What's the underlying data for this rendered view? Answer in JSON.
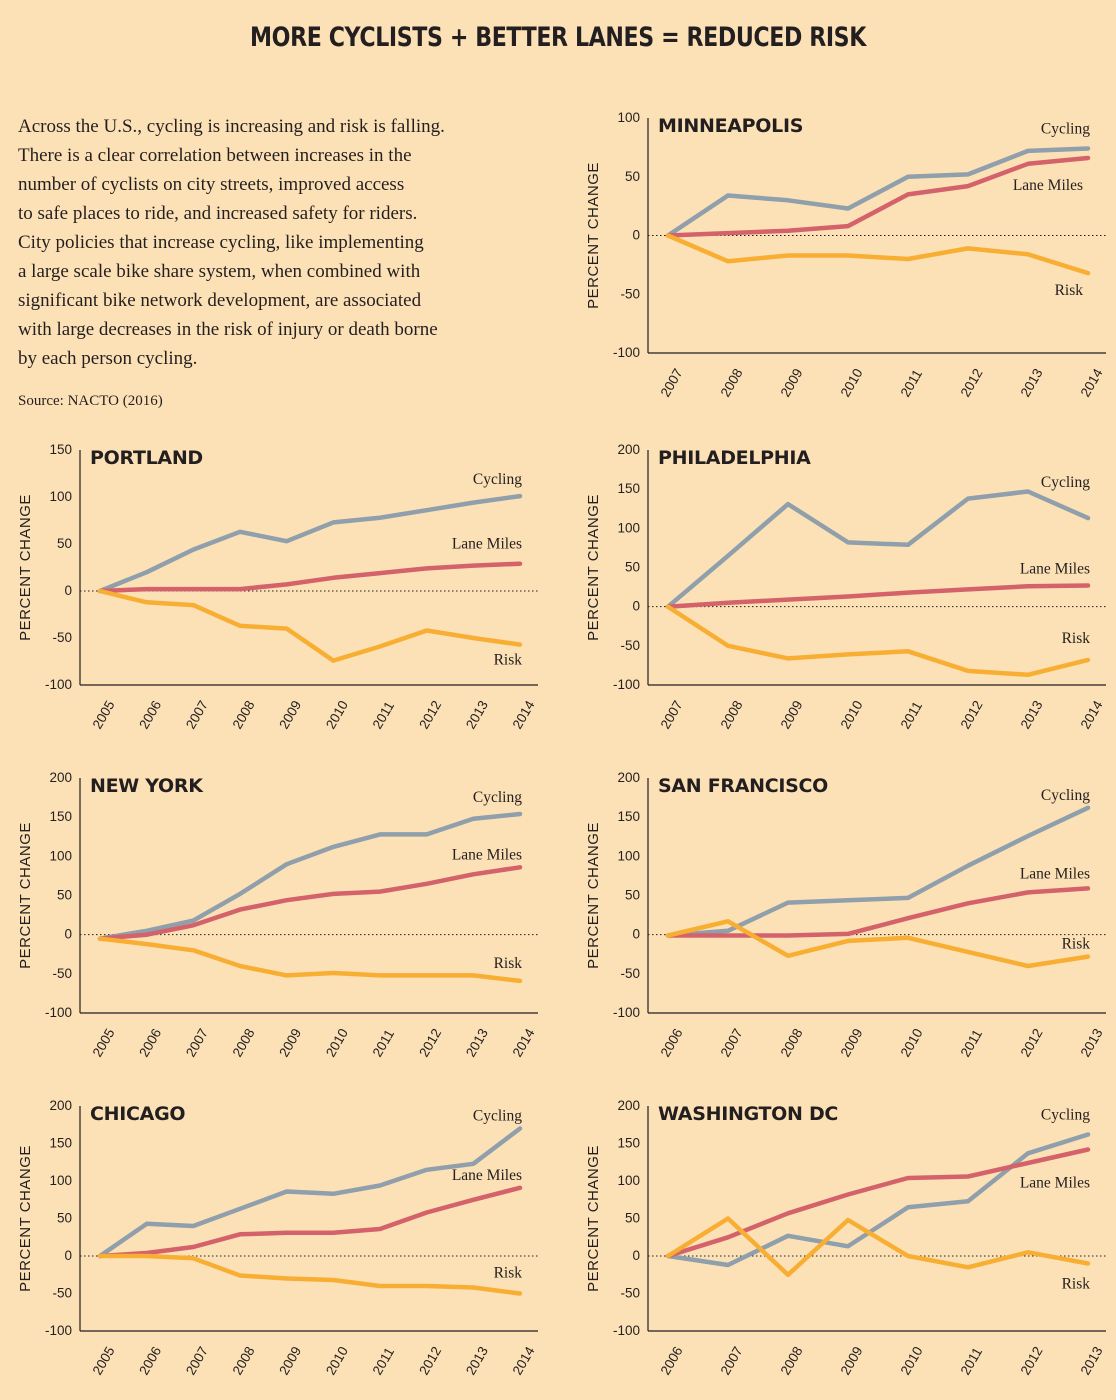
{
  "title": "MORE CYCLISTS + BETTER LANES = REDUCED RISK",
  "intro": {
    "lines": [
      "Across the U.S., cycling is increasing and risk is falling.",
      "There is a clear correlation between increases in the",
      "number of cyclists on city streets, improved access",
      "to safe places to ride, and increased safety for riders.",
      "City policies that increase cycling, like implementing",
      "a large scale bike share system, when combined with",
      "significant bike network development, are associated",
      "with large decreases in the risk of injury or death borne",
      "by each person cycling."
    ],
    "source": "Source: NACTO (2016)"
  },
  "colors": {
    "background": "#fde1b6",
    "cycling": "#8f9fab",
    "lane_miles": "#d4626a",
    "risk": "#f7ae33",
    "axis": "#231f20"
  },
  "chart_data": [
    {
      "id": "minneapolis",
      "type": "line",
      "title": "MINNEAPOLIS",
      "ylabel": "PERCENT CHANGE",
      "x": [
        "2007",
        "2008",
        "2009",
        "2010",
        "2011",
        "2012",
        "2013",
        "2014"
      ],
      "ylim": [
        -100,
        100
      ],
      "yticks": [
        100,
        50,
        0,
        -50,
        -100
      ],
      "series": [
        {
          "name": "Cycling",
          "key": "cycling",
          "values": [
            0,
            34,
            30,
            23,
            50,
            52,
            72,
            74
          ]
        },
        {
          "name": "Lane Miles",
          "key": "lane_miles",
          "values": [
            0,
            2,
            4,
            8,
            35,
            42,
            61,
            66
          ]
        },
        {
          "name": "Risk",
          "key": "risk",
          "values": [
            0,
            -22,
            -17,
            -17,
            -20,
            -11,
            -16,
            -32
          ]
        }
      ]
    },
    {
      "id": "portland",
      "type": "line",
      "title": "PORTLAND",
      "ylabel": "PERCENT CHANGE",
      "x": [
        "2005",
        "2006",
        "2007",
        "2008",
        "2009",
        "2010",
        "2011",
        "2012",
        "2013",
        "2014"
      ],
      "ylim": [
        -100,
        150
      ],
      "yticks": [
        150,
        100,
        50,
        0,
        -50,
        -100
      ],
      "series": [
        {
          "name": "Cycling",
          "key": "cycling",
          "values": [
            0,
            20,
            44,
            63,
            53,
            73,
            78,
            86,
            94,
            101
          ]
        },
        {
          "name": "Lane Miles",
          "key": "lane_miles",
          "values": [
            0,
            2,
            2,
            2,
            7,
            14,
            19,
            24,
            27,
            29
          ]
        },
        {
          "name": "Risk",
          "key": "risk",
          "values": [
            0,
            -12,
            -15,
            -37,
            -40,
            -74,
            -59,
            -42,
            -50,
            -57
          ]
        }
      ]
    },
    {
      "id": "philadelphia",
      "type": "line",
      "title": "PHILADELPHIA",
      "ylabel": "PERCENT CHANGE",
      "x": [
        "2007",
        "2008",
        "2009",
        "2010",
        "2011",
        "2012",
        "2013",
        "2014"
      ],
      "ylim": [
        -100,
        200
      ],
      "yticks": [
        200,
        150,
        100,
        50,
        0,
        -50,
        -100
      ],
      "series": [
        {
          "name": "Cycling",
          "key": "cycling",
          "values": [
            0,
            65,
            131,
            82,
            79,
            138,
            147,
            113
          ]
        },
        {
          "name": "Lane Miles",
          "key": "lane_miles",
          "values": [
            0,
            5,
            9,
            13,
            18,
            22,
            26,
            27
          ]
        },
        {
          "name": "Risk",
          "key": "risk",
          "values": [
            0,
            -50,
            -66,
            -61,
            -57,
            -82,
            -87,
            -68
          ]
        }
      ]
    },
    {
      "id": "new_york",
      "type": "line",
      "title": "NEW YORK",
      "ylabel": "PERCENT CHANGE",
      "x": [
        "2005",
        "2006",
        "2007",
        "2008",
        "2009",
        "2010",
        "2011",
        "2012",
        "2013",
        "2014"
      ],
      "ylim": [
        -100,
        200
      ],
      "yticks": [
        200,
        150,
        100,
        50,
        0,
        -50,
        -100
      ],
      "series": [
        {
          "name": "Cycling",
          "key": "cycling",
          "values": [
            -5,
            5,
            18,
            52,
            90,
            112,
            128,
            128,
            148,
            154
          ]
        },
        {
          "name": "Lane Miles",
          "key": "lane_miles",
          "values": [
            -5,
            0,
            12,
            32,
            44,
            52,
            55,
            65,
            77,
            86
          ]
        },
        {
          "name": "Risk",
          "key": "risk",
          "values": [
            -5,
            -12,
            -20,
            -40,
            -52,
            -49,
            -52,
            -52,
            -52,
            -59
          ]
        }
      ]
    },
    {
      "id": "san_francisco",
      "type": "line",
      "title": "SAN FRANCISCO",
      "ylabel": "PERCENT CHANGE",
      "x": [
        "2006",
        "2007",
        "2008",
        "2009",
        "2010",
        "2011",
        "2012",
        "2013"
      ],
      "ylim": [
        -100,
        200
      ],
      "yticks": [
        200,
        150,
        100,
        50,
        0,
        -50,
        -100
      ],
      "series": [
        {
          "name": "Cycling",
          "key": "cycling",
          "values": [
            -1,
            5,
            41,
            44,
            47,
            88,
            126,
            162
          ]
        },
        {
          "name": "Lane Miles",
          "key": "lane_miles",
          "values": [
            -1,
            -1,
            -1,
            1,
            21,
            40,
            54,
            59
          ]
        },
        {
          "name": "Risk",
          "key": "risk",
          "values": [
            -1,
            17,
            -27,
            -8,
            -4,
            -22,
            -40,
            -28
          ]
        }
      ]
    },
    {
      "id": "chicago",
      "type": "line",
      "title": "CHICAGO",
      "ylabel": "PERCENT CHANGE",
      "x": [
        "2005",
        "2006",
        "2007",
        "2008",
        "2009",
        "2010",
        "2011",
        "2012",
        "2013",
        "2014"
      ],
      "ylim": [
        -100,
        200
      ],
      "yticks": [
        200,
        150,
        100,
        50,
        0,
        -50,
        -100
      ],
      "series": [
        {
          "name": "Cycling",
          "key": "cycling",
          "values": [
            0,
            43,
            40,
            63,
            86,
            83,
            94,
            115,
            123,
            170
          ]
        },
        {
          "name": "Lane Miles",
          "key": "lane_miles",
          "values": [
            0,
            4,
            12,
            29,
            31,
            31,
            36,
            58,
            75,
            91
          ]
        },
        {
          "name": "Risk",
          "key": "risk",
          "values": [
            0,
            0,
            -3,
            -26,
            -30,
            -32,
            -40,
            -40,
            -42,
            -50
          ]
        }
      ]
    },
    {
      "id": "washington_dc",
      "type": "line",
      "title": "WASHINGTON DC",
      "ylabel": "PERCENT CHANGE",
      "x": [
        "2006",
        "2007",
        "2008",
        "2009",
        "2010",
        "2011",
        "2012",
        "2013"
      ],
      "ylim": [
        -100,
        200
      ],
      "yticks": [
        200,
        150,
        100,
        50,
        0,
        -50,
        -100
      ],
      "series": [
        {
          "name": "Cycling",
          "key": "cycling",
          "values": [
            0,
            -12,
            27,
            13,
            65,
            73,
            137,
            162
          ]
        },
        {
          "name": "Lane Miles",
          "key": "lane_miles",
          "values": [
            0,
            25,
            57,
            82,
            104,
            106,
            124,
            142
          ]
        },
        {
          "name": "Risk",
          "key": "risk",
          "values": [
            0,
            50,
            -25,
            48,
            0,
            -15,
            5,
            -10
          ]
        }
      ]
    }
  ]
}
